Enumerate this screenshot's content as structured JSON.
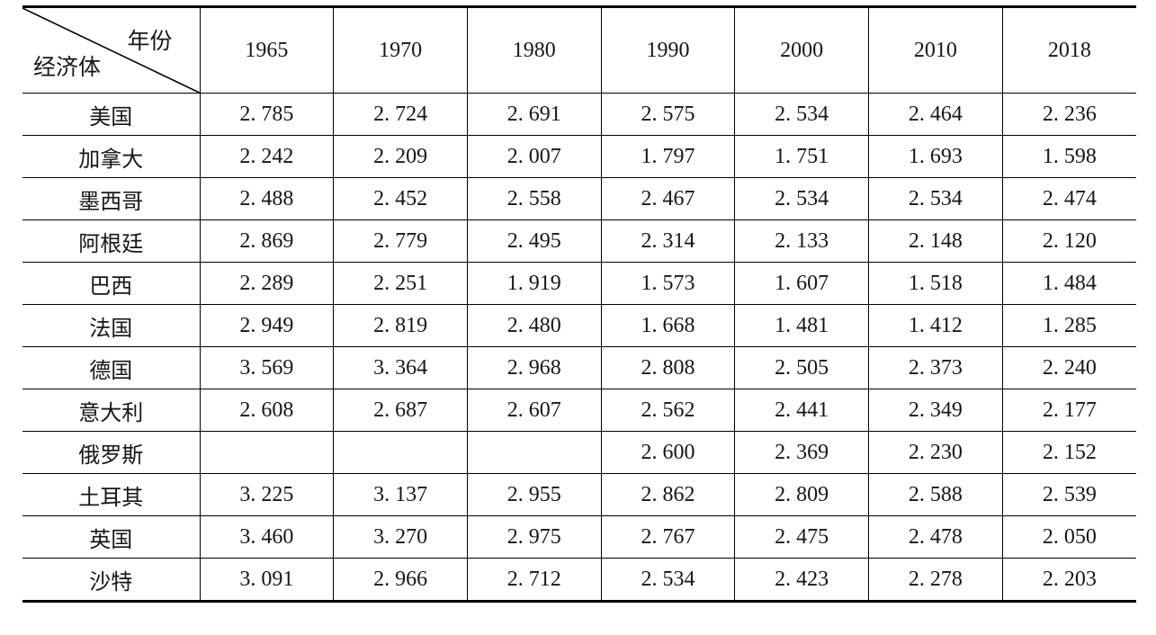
{
  "table": {
    "corner": {
      "top_label": "年份",
      "bottom_label": "经济体"
    },
    "year_headers": [
      "1965",
      "1970",
      "1980",
      "1990",
      "2000",
      "2010",
      "2018"
    ],
    "rows": [
      {
        "economy": "美国",
        "values": [
          "2. 785",
          "2. 724",
          "2. 691",
          "2. 575",
          "2. 534",
          "2. 464",
          "2. 236"
        ]
      },
      {
        "economy": "加拿大",
        "values": [
          "2. 242",
          "2. 209",
          "2. 007",
          "1. 797",
          "1. 751",
          "1. 693",
          "1. 598"
        ]
      },
      {
        "economy": "墨西哥",
        "values": [
          "2. 488",
          "2. 452",
          "2. 558",
          "2. 467",
          "2. 534",
          "2. 534",
          "2. 474"
        ]
      },
      {
        "economy": "阿根廷",
        "values": [
          "2. 869",
          "2. 779",
          "2. 495",
          "2. 314",
          "2. 133",
          "2. 148",
          "2. 120"
        ]
      },
      {
        "economy": "巴西",
        "values": [
          "2. 289",
          "2. 251",
          "1. 919",
          "1. 573",
          "1. 607",
          "1. 518",
          "1. 484"
        ]
      },
      {
        "economy": "法国",
        "values": [
          "2. 949",
          "2. 819",
          "2. 480",
          "1. 668",
          "1. 481",
          "1. 412",
          "1. 285"
        ]
      },
      {
        "economy": "德国",
        "values": [
          "3. 569",
          "3. 364",
          "2. 968",
          "2. 808",
          "2. 505",
          "2. 373",
          "2. 240"
        ]
      },
      {
        "economy": "意大利",
        "values": [
          "2. 608",
          "2. 687",
          "2. 607",
          "2. 562",
          "2. 441",
          "2. 349",
          "2. 177"
        ]
      },
      {
        "economy": "俄罗斯",
        "values": [
          "",
          "",
          "",
          "2. 600",
          "2. 369",
          "2. 230",
          "2. 152"
        ]
      },
      {
        "economy": "土耳其",
        "values": [
          "3. 225",
          "3. 137",
          "2. 955",
          "2. 862",
          "2. 809",
          "2. 588",
          "2. 539"
        ]
      },
      {
        "economy": "英国",
        "values": [
          "3. 460",
          "3. 270",
          "2. 975",
          "2. 767",
          "2. 475",
          "2. 478",
          "2. 050"
        ]
      },
      {
        "economy": "沙特",
        "values": [
          "3. 091",
          "2. 966",
          "2. 712",
          "2. 534",
          "2. 423",
          "2. 278",
          "2. 203"
        ]
      }
    ]
  }
}
